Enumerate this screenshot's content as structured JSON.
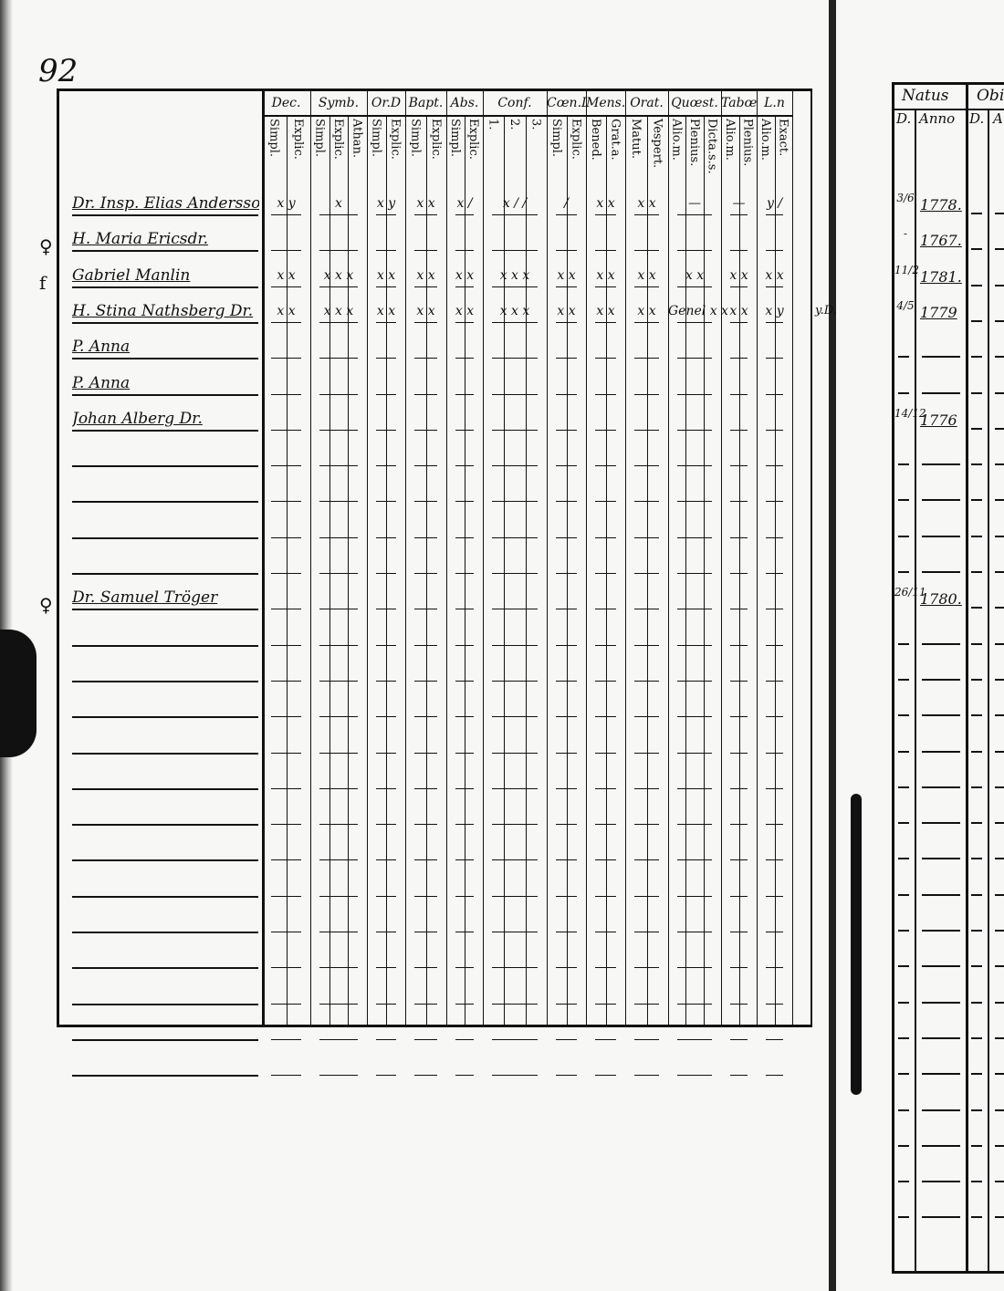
{
  "page_number": "92",
  "ledger": {
    "groups": [
      {
        "label": "Dec.",
        "subs": [
          "Simpl.",
          "Explic."
        ]
      },
      {
        "label": "Symb.",
        "subs": [
          "Simpl.",
          "Explic.",
          "Athan."
        ]
      },
      {
        "label": "Or.D",
        "subs": [
          "Simpl.",
          "Explic."
        ]
      },
      {
        "label": "Bapt.",
        "subs": [
          "Simpl.",
          "Explic."
        ]
      },
      {
        "label": "Abs.",
        "subs": [
          "Simpl.",
          "Explic."
        ]
      },
      {
        "label": "Conf.",
        "subs": [
          "1.",
          "2.",
          "3."
        ]
      },
      {
        "label": "Cœn.D",
        "subs": [
          "Simpl.",
          "Explic."
        ]
      },
      {
        "label": "Mens.",
        "subs": [
          "Bened.",
          "Grat.a."
        ]
      },
      {
        "label": "Orat.",
        "subs": [
          "Matut.",
          "Vespert."
        ]
      },
      {
        "label": "Quœst.",
        "subs": [
          "Alio.m.",
          "Plenius.",
          "Dicta.s.s."
        ]
      },
      {
        "label": "Tabœ",
        "subs": [
          "Alio.m.",
          "Plenius."
        ]
      },
      {
        "label": "L.n",
        "subs": [
          "Alio.m.",
          "Exact."
        ]
      }
    ],
    "rows": [
      {
        "margin": "",
        "name": "Dr. Insp. Elias Andersson",
        "marks": [
          "x y",
          "x",
          "x y",
          "x x",
          "x /",
          "x / /",
          "/",
          "x x",
          "x x",
          "—",
          "—",
          "y /"
        ],
        "note": ""
      },
      {
        "margin": "♀",
        "name": "H. Maria Ericsdr.",
        "marks": [
          "",
          "",
          "",
          "",
          "",
          "",
          "",
          "",
          "",
          "",
          "",
          ""
        ],
        "note": ""
      },
      {
        "margin": "f",
        "name": "Gabriel Manlin",
        "marks": [
          "x x",
          "x x x",
          "x x",
          "x x",
          "x x",
          "x x x",
          "x x",
          "x x",
          "x x",
          "x x",
          "x x",
          "x x"
        ],
        "note": ""
      },
      {
        "margin": "",
        "name": "H. Stina Nathsberg Dr.",
        "marks": [
          "x x",
          "x x x",
          "x x",
          "x x",
          "x x",
          "x x x",
          "x x",
          "x x",
          "x x",
          "Genel x x",
          "x x",
          "x y"
        ],
        "note": "y.D."
      },
      {
        "margin": "",
        "name": "P. Anna",
        "marks": [
          "",
          "",
          "",
          "",
          "",
          "",
          "",
          "",
          "",
          "",
          "",
          ""
        ],
        "note": ""
      },
      {
        "margin": "",
        "name": "P. Anna",
        "marks": [
          "",
          "",
          "",
          "",
          "",
          "",
          "",
          "",
          "",
          "",
          "",
          ""
        ],
        "note": ""
      },
      {
        "margin": "",
        "name": "Johan Alberg Dr.",
        "marks": [
          "",
          "",
          "",
          "",
          "",
          "",
          "",
          "",
          "",
          "",
          "",
          ""
        ],
        "note": ""
      },
      {
        "margin": "",
        "name": "",
        "marks": []
      },
      {
        "margin": "",
        "name": "",
        "marks": []
      },
      {
        "margin": "",
        "name": "",
        "marks": []
      },
      {
        "margin": "",
        "name": "",
        "marks": []
      },
      {
        "margin": "♀",
        "name": "Dr. Samuel Tröger",
        "marks": [
          "",
          "",
          "",
          "",
          "",
          "",
          "",
          "",
          "",
          "",
          "",
          ""
        ],
        "note": ""
      }
    ]
  },
  "natus": {
    "title": "Natus",
    "next_title": "Obi",
    "col_day": "D.",
    "col_year": "Anno",
    "col_day2": "D.",
    "col_year2": "A",
    "rows": [
      {
        "day": "3/6",
        "year": "1778."
      },
      {
        "day": "-",
        "year": "1767."
      },
      {
        "day": "11/2",
        "year": "1781."
      },
      {
        "day": "4/5",
        "year": "1779"
      },
      {
        "day": "",
        "year": ""
      },
      {
        "day": "",
        "year": ""
      },
      {
        "day": "14/12",
        "year": "1776"
      },
      {
        "day": "",
        "year": ""
      },
      {
        "day": "",
        "year": ""
      },
      {
        "day": "",
        "year": ""
      },
      {
        "day": "",
        "year": ""
      },
      {
        "day": "26/11",
        "year": "1780."
      }
    ]
  }
}
